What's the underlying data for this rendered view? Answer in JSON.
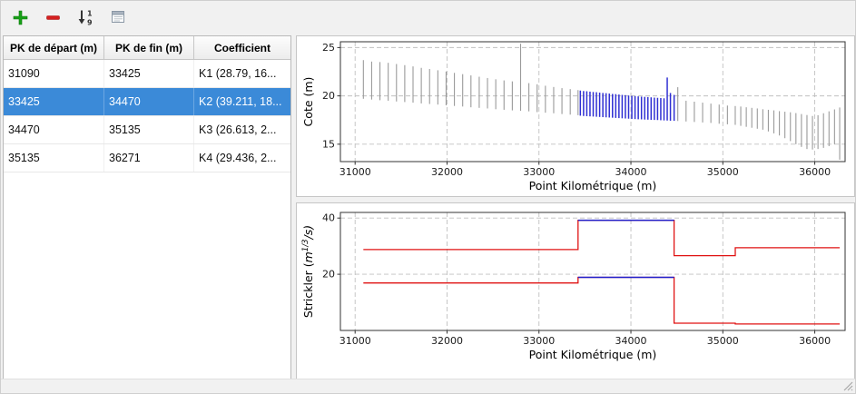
{
  "toolbar": {
    "buttons": [
      {
        "name": "add",
        "icon": "plus-icon",
        "color": "#18a018"
      },
      {
        "name": "delete",
        "icon": "minus-icon",
        "color": "#d42020"
      },
      {
        "name": "sort",
        "icon": "sort-numeric-icon",
        "color": "#333333"
      },
      {
        "name": "edit",
        "icon": "table-edit-icon",
        "color": "#8a97a5"
      }
    ]
  },
  "table": {
    "columns": [
      "PK de départ (m)",
      "PK de fin (m)",
      "Coefficient"
    ],
    "rows": [
      {
        "pk_start": "31090",
        "pk_end": "33425",
        "coefficient": "K1 (28.79, 16...",
        "selected": false
      },
      {
        "pk_start": "33425",
        "pk_end": "34470",
        "coefficient": "K2 (39.211, 18...",
        "selected": true
      },
      {
        "pk_start": "34470",
        "pk_end": "35135",
        "coefficient": "K3 (26.613, 2...",
        "selected": false
      },
      {
        "pk_start": "35135",
        "pk_end": "36271",
        "coefficient": "K4 (29.436, 2...",
        "selected": false
      }
    ]
  },
  "colors": {
    "selection_background": "#3b8ad8",
    "section_line": "#9a9a9a",
    "selected_section_line": "#2f2fd3",
    "strickler_line": "#e01212",
    "selected_strickler_line": "#2121cc",
    "grid": "#c0c0c0",
    "axes": "#333333"
  },
  "chart_data": [
    {
      "type": "line",
      "title": "",
      "xlabel": "Point Kilométrique (m)",
      "ylabel": "Cote (m)",
      "xlim": [
        30840,
        36330
      ],
      "ylim": [
        13.2,
        25.6
      ],
      "xticks": [
        31000,
        32000,
        33000,
        34000,
        35000,
        36000
      ],
      "yticks": [
        15,
        20,
        25
      ],
      "grid": true,
      "legend": "none",
      "selected_range": [
        33425,
        34470
      ],
      "series_format": "cross-section vertical segments [pk_m, z_bottom_m, z_top_m]",
      "sections": [
        [
          31090,
          19.7,
          23.7
        ],
        [
          31180,
          19.62,
          23.55
        ],
        [
          31270,
          19.55,
          23.5
        ],
        [
          31360,
          19.5,
          23.42
        ],
        [
          31450,
          19.42,
          23.3
        ],
        [
          31540,
          19.36,
          23.18
        ],
        [
          31630,
          19.3,
          23.05
        ],
        [
          31720,
          19.22,
          22.9
        ],
        [
          31810,
          19.16,
          22.78
        ],
        [
          31900,
          19.1,
          22.65
        ],
        [
          31990,
          19.02,
          22.52
        ],
        [
          32080,
          18.96,
          22.38
        ],
        [
          32170,
          18.9,
          22.25
        ],
        [
          32260,
          18.82,
          22.12
        ],
        [
          32350,
          18.76,
          21.98
        ],
        [
          32440,
          18.7,
          21.85
        ],
        [
          32530,
          18.62,
          21.72
        ],
        [
          32620,
          18.56,
          21.6
        ],
        [
          32710,
          18.5,
          21.5
        ],
        [
          32800,
          18.45,
          25.4
        ],
        [
          32890,
          18.4,
          21.32
        ],
        [
          32980,
          18.32,
          21.2
        ],
        [
          33070,
          18.26,
          21.05
        ],
        [
          33160,
          18.2,
          20.92
        ],
        [
          33250,
          18.12,
          20.8
        ],
        [
          33340,
          18.06,
          20.7
        ],
        [
          33425,
          18.0,
          20.6
        ],
        [
          33450,
          17.95,
          20.55
        ],
        [
          33485,
          17.92,
          20.5
        ],
        [
          33520,
          17.9,
          20.48
        ],
        [
          33555,
          17.88,
          20.44
        ],
        [
          33590,
          17.86,
          20.4
        ],
        [
          33625,
          17.84,
          20.38
        ],
        [
          33660,
          17.82,
          20.34
        ],
        [
          33695,
          17.8,
          20.3
        ],
        [
          33730,
          17.78,
          20.28
        ],
        [
          33765,
          17.76,
          20.24
        ],
        [
          33800,
          17.74,
          20.2
        ],
        [
          33835,
          17.72,
          20.18
        ],
        [
          33870,
          17.7,
          20.14
        ],
        [
          33905,
          17.68,
          20.1
        ],
        [
          33940,
          17.66,
          20.08
        ],
        [
          33975,
          17.64,
          20.04
        ],
        [
          34010,
          17.62,
          20.0
        ],
        [
          34045,
          17.6,
          19.98
        ],
        [
          34080,
          17.58,
          19.95
        ],
        [
          34115,
          17.57,
          19.92
        ],
        [
          34150,
          17.55,
          19.9
        ],
        [
          34185,
          17.54,
          19.88
        ],
        [
          34220,
          17.52,
          19.85
        ],
        [
          34255,
          17.51,
          19.82
        ],
        [
          34290,
          17.5,
          19.8
        ],
        [
          34325,
          17.48,
          19.78
        ],
        [
          34360,
          17.46,
          19.75
        ],
        [
          34395,
          17.45,
          21.9
        ],
        [
          34430,
          17.43,
          20.3
        ],
        [
          34470,
          17.42,
          20.1
        ],
        [
          34510,
          17.4,
          20.9
        ],
        [
          34600,
          17.35,
          19.5
        ],
        [
          34690,
          17.3,
          19.4
        ],
        [
          34780,
          17.25,
          19.3
        ],
        [
          34870,
          17.2,
          19.2
        ],
        [
          34960,
          17.12,
          19.1
        ],
        [
          35050,
          17.06,
          19.0
        ],
        [
          35135,
          17.0,
          18.95
        ],
        [
          35195,
          16.9,
          18.9
        ],
        [
          35255,
          16.8,
          18.82
        ],
        [
          35315,
          16.7,
          18.76
        ],
        [
          35375,
          16.6,
          18.7
        ],
        [
          35435,
          16.5,
          18.62
        ],
        [
          35495,
          16.32,
          18.56
        ],
        [
          35555,
          16.12,
          18.5
        ],
        [
          35615,
          15.9,
          18.42
        ],
        [
          35675,
          15.62,
          18.36
        ],
        [
          35735,
          15.32,
          18.3
        ],
        [
          35795,
          15.0,
          18.22
        ],
        [
          35855,
          14.72,
          18.12
        ],
        [
          35915,
          14.5,
          18.02
        ],
        [
          35975,
          14.45,
          17.92
        ],
        [
          36035,
          14.5,
          18.0
        ],
        [
          36095,
          14.62,
          18.2
        ],
        [
          36155,
          14.8,
          18.4
        ],
        [
          36215,
          15.0,
          18.6
        ],
        [
          36271,
          13.4,
          18.8
        ]
      ]
    },
    {
      "type": "line",
      "title": "",
      "xlabel": "Point Kilométrique (m)",
      "ylabel": "Strickler (m^{1/3}/s)",
      "ylabel_parts": [
        "Strickler (",
        "m",
        "1/3",
        "/s)"
      ],
      "xlim": [
        30840,
        36330
      ],
      "ylim": [
        0,
        42
      ],
      "xticks": [
        31000,
        32000,
        33000,
        34000,
        35000,
        36000
      ],
      "yticks": [
        20,
        40
      ],
      "grid": true,
      "legend": "none",
      "series_format": "step segments per reach; minor/major bed Strickler coefficients",
      "segments": [
        {
          "label": "K1",
          "x0": 31090,
          "x1": 33425,
          "minor": 28.79,
          "major": 16.9,
          "selected": false
        },
        {
          "label": "K2",
          "x0": 33425,
          "x1": 34470,
          "minor": 39.211,
          "major": 18.9,
          "selected": true
        },
        {
          "label": "K3",
          "x0": 34470,
          "x1": 35135,
          "minor": 26.613,
          "major": 2.6,
          "selected": false
        },
        {
          "label": "K4",
          "x0": 35135,
          "x1": 36271,
          "minor": 29.436,
          "major": 2.3,
          "selected": false
        }
      ]
    }
  ]
}
